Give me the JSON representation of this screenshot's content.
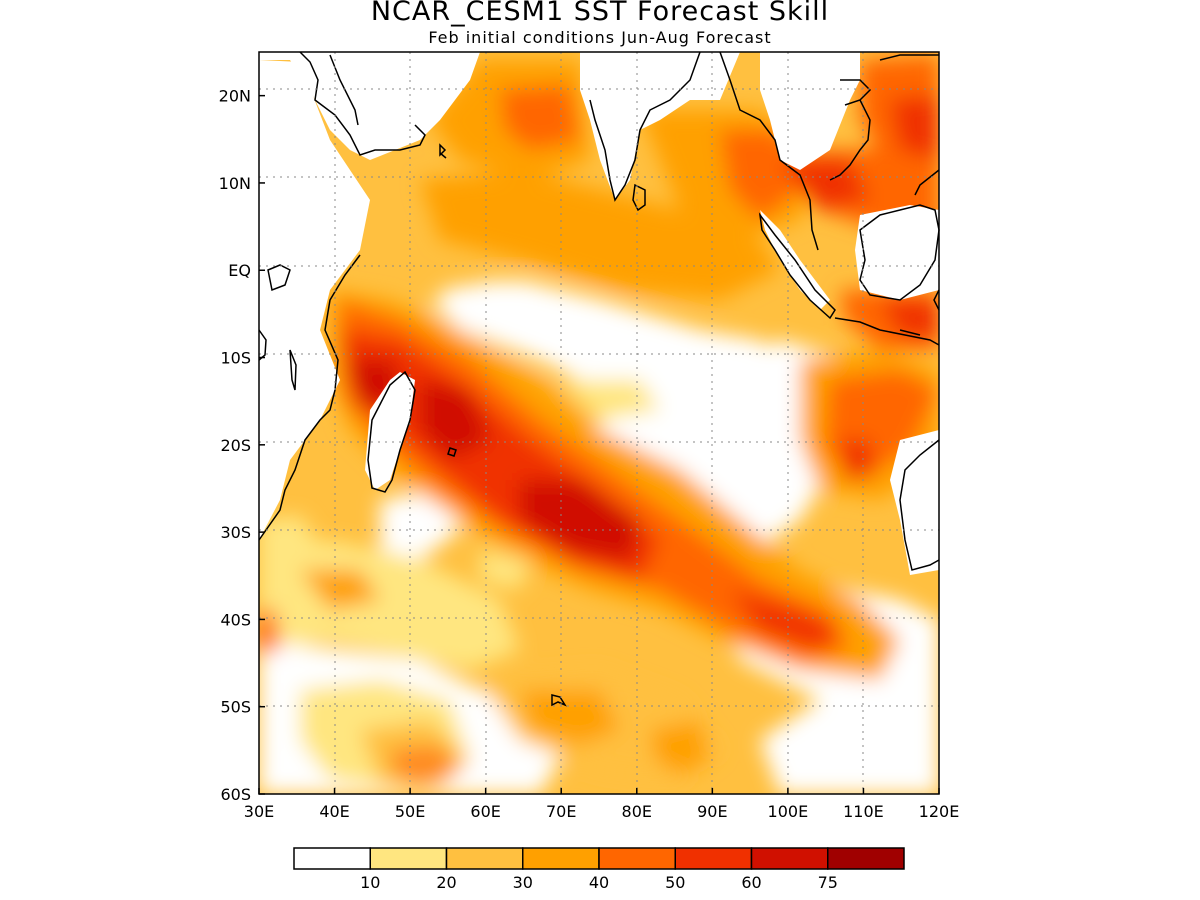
{
  "title": "NCAR_CESM1 SST Forecast Skill",
  "subtitle": "Feb initial conditions  Jun-Aug Forecast",
  "map": {
    "region": "Indian Ocean",
    "lon_range": [
      30,
      120
    ],
    "lat_range": [
      -60,
      25
    ],
    "grid": "dotted",
    "lon_ticks": [
      "30E",
      "40E",
      "50E",
      "60E",
      "70E",
      "80E",
      "90E",
      "100E",
      "110E",
      "120E"
    ],
    "lat_ticks": [
      "20N",
      "10N",
      "EQ",
      "10S",
      "20S",
      "30S",
      "40S",
      "50S",
      "60S"
    ]
  },
  "legend": {
    "labels": [
      "10",
      "20",
      "30",
      "40",
      "50",
      "60",
      "75"
    ],
    "colors": [
      "#ffffff",
      "#ffe680",
      "#ffc040",
      "#ffa000",
      "#ff6600",
      "#f03000",
      "#d01000",
      "#a00000"
    ]
  },
  "chart_data": {
    "type": "heatmap",
    "title": "NCAR_CESM1 SST Forecast Skill",
    "subtitle": "Feb initial conditions  Jun-Aug Forecast",
    "x_range": [
      30,
      120
    ],
    "y_range": [
      -60,
      25
    ],
    "levels": [
      10,
      20,
      30,
      40,
      50,
      60,
      75
    ],
    "features": [
      {
        "lon": 70,
        "lat": 15,
        "value": 55
      },
      {
        "lon": 62,
        "lat": 5,
        "value": 40
      },
      {
        "lon": 100,
        "lat": 10,
        "value": 65
      },
      {
        "lon": 110,
        "lat": 10,
        "value": 55
      },
      {
        "lon": 116,
        "lat": 15,
        "value": 55
      },
      {
        "lon": 90,
        "lat": 8,
        "value": 35
      },
      {
        "lon": 45,
        "lat": -12,
        "value": 65
      },
      {
        "lon": 58,
        "lat": -18,
        "value": 65
      },
      {
        "lon": 65,
        "lat": -24,
        "value": 65
      },
      {
        "lon": 75,
        "lat": -30,
        "value": 70
      },
      {
        "lon": 85,
        "lat": -36,
        "value": 55
      },
      {
        "lon": 95,
        "lat": -40,
        "value": 55
      },
      {
        "lon": 105,
        "lat": -42,
        "value": 55
      },
      {
        "lon": 110,
        "lat": -22,
        "value": 55
      },
      {
        "lon": 115,
        "lat": -8,
        "value": 55
      },
      {
        "lon": 70,
        "lat": -52,
        "value": 35
      },
      {
        "lon": 50,
        "lat": -55,
        "value": 45
      },
      {
        "lon": 45,
        "lat": -37,
        "value": 40
      },
      {
        "lon": 40,
        "lat": -3,
        "value": 45
      },
      {
        "lon": 60,
        "lat": -3,
        "value": 8
      },
      {
        "lon": 90,
        "lat": -20,
        "value": 8
      },
      {
        "lon": 95,
        "lat": -10,
        "value": 8
      },
      {
        "lon": 40,
        "lat": -48,
        "value": 8
      }
    ]
  }
}
